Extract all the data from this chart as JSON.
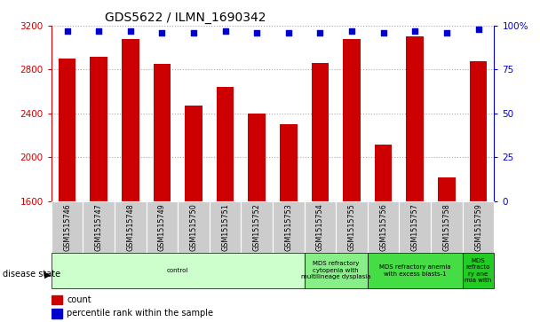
{
  "title": "GDS5622 / ILMN_1690342",
  "samples": [
    "GSM1515746",
    "GSM1515747",
    "GSM1515748",
    "GSM1515749",
    "GSM1515750",
    "GSM1515751",
    "GSM1515752",
    "GSM1515753",
    "GSM1515754",
    "GSM1515755",
    "GSM1515756",
    "GSM1515757",
    "GSM1515758",
    "GSM1515759"
  ],
  "counts": [
    2900,
    2920,
    3080,
    2850,
    2470,
    2640,
    2400,
    2300,
    2860,
    3080,
    2120,
    3100,
    1820,
    2880
  ],
  "percentiles": [
    97,
    97,
    97,
    96,
    96,
    97,
    96,
    96,
    96,
    97,
    96,
    97,
    96,
    98
  ],
  "ylim_left": [
    1600,
    3200
  ],
  "ylim_right": [
    0,
    100
  ],
  "yticks_left": [
    1600,
    2000,
    2400,
    2800,
    3200
  ],
  "yticks_right": [
    0,
    25,
    50,
    75,
    100
  ],
  "ytick_labels_right": [
    "0",
    "25",
    "50",
    "75",
    "100%"
  ],
  "bar_color": "#cc0000",
  "dot_color": "#0000cc",
  "grid_color": "#aaaaaa",
  "disease_groups": [
    {
      "label": "control",
      "start": 0,
      "end": 8,
      "color": "#ccffcc"
    },
    {
      "label": "MDS refractory\ncytopenia with\nmultilineage dysplasia",
      "start": 8,
      "end": 10,
      "color": "#88ee88"
    },
    {
      "label": "MDS refractory anemia\nwith excess blasts-1",
      "start": 10,
      "end": 13,
      "color": "#44dd44"
    },
    {
      "label": "MDS\nrefracto\nry ane\nmia with",
      "start": 13,
      "end": 14,
      "color": "#22cc22"
    }
  ],
  "disease_state_label": "disease state",
  "legend_count_label": "count",
  "legend_pct_label": "percentile rank within the sample",
  "bg_color": "#ffffff",
  "tick_bg_color": "#cccccc"
}
